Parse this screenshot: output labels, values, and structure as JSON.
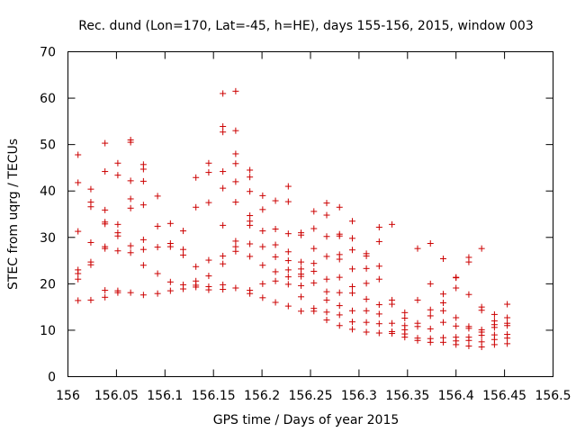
{
  "chart_data": {
    "type": "scatter",
    "title": "Rec. dund (Lon=170, Lat=-45, h=HE), days 155-156, 2015, window 003",
    "xlabel": "GPS time / Days of year 2015",
    "ylabel": "STEC from uqrg / TECUs",
    "xlim": [
      156,
      156.5
    ],
    "ylim": [
      0,
      70
    ],
    "xticks": [
      "156",
      "156.05",
      "156.1",
      "156.15",
      "156.2",
      "156.25",
      "156.3",
      "156.35",
      "156.4",
      "156.45",
      "156.5"
    ],
    "yticks": [
      "0",
      "10",
      "20",
      "30",
      "40",
      "50",
      "60",
      "70"
    ],
    "grid": false,
    "marker": "plus",
    "color": "#cc0000",
    "points": [
      [
        156.0104,
        47.8
      ],
      [
        156.0104,
        41.8
      ],
      [
        156.0104,
        31.3
      ],
      [
        156.0104,
        23.0
      ],
      [
        156.0104,
        22.2
      ],
      [
        156.0104,
        21.0
      ],
      [
        156.0104,
        16.4
      ],
      [
        156.0236,
        40.4
      ],
      [
        156.0236,
        37.6
      ],
      [
        156.0236,
        36.6
      ],
      [
        156.0236,
        28.9
      ],
      [
        156.0236,
        24.7
      ],
      [
        156.0236,
        24.1
      ],
      [
        156.0236,
        16.5
      ],
      [
        156.0382,
        50.3
      ],
      [
        156.0382,
        44.2
      ],
      [
        156.0382,
        35.9
      ],
      [
        156.0382,
        33.3
      ],
      [
        156.0382,
        32.9
      ],
      [
        156.0382,
        28.0
      ],
      [
        156.0382,
        27.6
      ],
      [
        156.0382,
        18.6
      ],
      [
        156.0382,
        17.1
      ],
      [
        156.0514,
        46.0
      ],
      [
        156.0514,
        43.4
      ],
      [
        156.0514,
        32.8
      ],
      [
        156.0514,
        31.0
      ],
      [
        156.0514,
        30.3
      ],
      [
        156.0514,
        27.1
      ],
      [
        156.0514,
        18.5
      ],
      [
        156.0514,
        18.1
      ],
      [
        156.0646,
        51.0
      ],
      [
        156.0646,
        50.5
      ],
      [
        156.0646,
        42.2
      ],
      [
        156.0646,
        38.3
      ],
      [
        156.0646,
        36.3
      ],
      [
        156.0646,
        28.2
      ],
      [
        156.0646,
        26.7
      ],
      [
        156.0646,
        18.1
      ],
      [
        156.0778,
        45.7
      ],
      [
        156.0778,
        44.7
      ],
      [
        156.0778,
        42.1
      ],
      [
        156.0778,
        37.0
      ],
      [
        156.0778,
        29.5
      ],
      [
        156.0778,
        27.4
      ],
      [
        156.0778,
        24.0
      ],
      [
        156.0778,
        17.6
      ],
      [
        156.0924,
        38.9
      ],
      [
        156.0924,
        32.4
      ],
      [
        156.0924,
        27.9
      ],
      [
        156.0924,
        22.2
      ],
      [
        156.0924,
        17.9
      ],
      [
        156.1056,
        33.0
      ],
      [
        156.1056,
        28.7
      ],
      [
        156.1056,
        28.0
      ],
      [
        156.1056,
        20.4
      ],
      [
        156.1056,
        18.5
      ],
      [
        156.1188,
        31.4
      ],
      [
        156.1188,
        27.4
      ],
      [
        156.1188,
        26.2
      ],
      [
        156.1188,
        19.8
      ],
      [
        156.1188,
        18.9
      ],
      [
        156.1319,
        42.9
      ],
      [
        156.1319,
        36.5
      ],
      [
        156.1319,
        23.7
      ],
      [
        156.1319,
        20.6
      ],
      [
        156.1319,
        19.3
      ],
      [
        156.1319,
        19.7
      ],
      [
        156.1451,
        46.0
      ],
      [
        156.1451,
        44.0
      ],
      [
        156.1451,
        37.5
      ],
      [
        156.1451,
        25.1
      ],
      [
        156.1451,
        21.7
      ],
      [
        156.1451,
        19.4
      ],
      [
        156.1451,
        18.7
      ],
      [
        156.1597,
        61.0
      ],
      [
        156.1597,
        53.9
      ],
      [
        156.1597,
        52.7
      ],
      [
        156.1597,
        44.2
      ],
      [
        156.1597,
        40.6
      ],
      [
        156.1597,
        32.6
      ],
      [
        156.1597,
        26.0
      ],
      [
        156.1597,
        24.3
      ],
      [
        156.1597,
        19.8
      ],
      [
        156.1597,
        18.8
      ],
      [
        156.1729,
        61.5
      ],
      [
        156.1729,
        53.0
      ],
      [
        156.1729,
        48.0
      ],
      [
        156.1729,
        45.9
      ],
      [
        156.1729,
        42.0
      ],
      [
        156.1729,
        37.6
      ],
      [
        156.1729,
        29.2
      ],
      [
        156.1729,
        28.0
      ],
      [
        156.1729,
        27.0
      ],
      [
        156.1729,
        19.1
      ],
      [
        156.1875,
        44.5
      ],
      [
        156.1875,
        43.0
      ],
      [
        156.1875,
        39.9
      ],
      [
        156.1875,
        34.7
      ],
      [
        156.1875,
        33.5
      ],
      [
        156.1875,
        32.6
      ],
      [
        156.1875,
        28.6
      ],
      [
        156.1875,
        25.9
      ],
      [
        156.1875,
        18.6
      ],
      [
        156.1875,
        17.9
      ],
      [
        156.2007,
        39.0
      ],
      [
        156.2007,
        36.0
      ],
      [
        156.2007,
        31.4
      ],
      [
        156.2007,
        28.0
      ],
      [
        156.2007,
        24.0
      ],
      [
        156.2007,
        20.0
      ],
      [
        156.2007,
        17.0
      ],
      [
        156.2139,
        37.9
      ],
      [
        156.2139,
        31.8
      ],
      [
        156.2139,
        28.4
      ],
      [
        156.2139,
        25.8
      ],
      [
        156.2139,
        22.6
      ],
      [
        156.2139,
        20.6
      ],
      [
        156.2139,
        16.0
      ],
      [
        156.2271,
        41.0
      ],
      [
        156.2271,
        37.7
      ],
      [
        156.2271,
        30.8
      ],
      [
        156.2271,
        26.9
      ],
      [
        156.2271,
        25.0
      ],
      [
        156.2271,
        23.0
      ],
      [
        156.2271,
        21.5
      ],
      [
        156.2271,
        19.9
      ],
      [
        156.2271,
        15.2
      ],
      [
        156.2403,
        31.0
      ],
      [
        156.2403,
        30.5
      ],
      [
        156.2403,
        24.7
      ],
      [
        156.2403,
        23.2
      ],
      [
        156.2403,
        22.1
      ],
      [
        156.2403,
        21.6
      ],
      [
        156.2403,
        19.6
      ],
      [
        156.2403,
        17.2
      ],
      [
        156.2403,
        14.1
      ],
      [
        156.2535,
        35.6
      ],
      [
        156.2535,
        31.9
      ],
      [
        156.2535,
        27.6
      ],
      [
        156.2535,
        24.4
      ],
      [
        156.2535,
        22.7
      ],
      [
        156.2535,
        20.2
      ],
      [
        156.2535,
        14.7
      ],
      [
        156.2535,
        14.1
      ],
      [
        156.2667,
        37.4
      ],
      [
        156.2667,
        34.8
      ],
      [
        156.2667,
        30.2
      ],
      [
        156.2667,
        25.9
      ],
      [
        156.2667,
        21.0
      ],
      [
        156.2667,
        18.3
      ],
      [
        156.2667,
        16.5
      ],
      [
        156.2667,
        13.9
      ],
      [
        156.2667,
        12.2
      ],
      [
        156.2799,
        36.5
      ],
      [
        156.2799,
        30.7
      ],
      [
        156.2799,
        30.3
      ],
      [
        156.2799,
        26.3
      ],
      [
        156.2799,
        25.3
      ],
      [
        156.2799,
        21.4
      ],
      [
        156.2799,
        18.1
      ],
      [
        156.2799,
        15.3
      ],
      [
        156.2799,
        13.3
      ],
      [
        156.2799,
        11.0
      ],
      [
        156.2931,
        33.5
      ],
      [
        156.2931,
        29.8
      ],
      [
        156.2931,
        27.3
      ],
      [
        156.2931,
        23.2
      ],
      [
        156.2931,
        19.4
      ],
      [
        156.2931,
        18.0
      ],
      [
        156.2931,
        14.2
      ],
      [
        156.2931,
        11.8
      ],
      [
        156.2931,
        10.2
      ],
      [
        156.3076,
        26.5
      ],
      [
        156.3076,
        26.0
      ],
      [
        156.3076,
        23.3
      ],
      [
        156.3076,
        20.1
      ],
      [
        156.3076,
        16.7
      ],
      [
        156.3076,
        14.2
      ],
      [
        156.3076,
        11.7
      ],
      [
        156.3076,
        9.6
      ],
      [
        156.3208,
        32.2
      ],
      [
        156.3208,
        29.1
      ],
      [
        156.3208,
        23.8
      ],
      [
        156.3208,
        21.0
      ],
      [
        156.3208,
        15.5
      ],
      [
        156.3208,
        13.5
      ],
      [
        156.3208,
        11.4
      ],
      [
        156.3208,
        9.4
      ],
      [
        156.334,
        32.8
      ],
      [
        156.334,
        16.5
      ],
      [
        156.334,
        15.6
      ],
      [
        156.334,
        11.5
      ],
      [
        156.334,
        9.7
      ],
      [
        156.334,
        9.3
      ],
      [
        156.3472,
        13.8
      ],
      [
        156.3472,
        12.6
      ],
      [
        156.3472,
        11.0
      ],
      [
        156.3472,
        10.1
      ],
      [
        156.3472,
        9.2
      ],
      [
        156.3472,
        8.5
      ],
      [
        156.3604,
        27.6
      ],
      [
        156.3604,
        16.5
      ],
      [
        156.3604,
        11.5
      ],
      [
        156.3604,
        10.8
      ],
      [
        156.3604,
        8.3
      ],
      [
        156.3604,
        7.8
      ],
      [
        156.3736,
        28.7
      ],
      [
        156.3736,
        20.0
      ],
      [
        156.3736,
        14.4
      ],
      [
        156.3736,
        13.1
      ],
      [
        156.3736,
        10.3
      ],
      [
        156.3736,
        8.2
      ],
      [
        156.3736,
        7.4
      ],
      [
        156.3868,
        25.4
      ],
      [
        156.3868,
        17.8
      ],
      [
        156.3868,
        15.9
      ],
      [
        156.3868,
        14.2
      ],
      [
        156.3868,
        11.7
      ],
      [
        156.3868,
        8.4
      ],
      [
        156.3868,
        7.4
      ],
      [
        156.4,
        21.4
      ],
      [
        156.4,
        21.3
      ],
      [
        156.4,
        19.1
      ],
      [
        156.4,
        12.7
      ],
      [
        156.4,
        10.9
      ],
      [
        156.4,
        8.5
      ],
      [
        156.4,
        7.7
      ],
      [
        156.4,
        6.9
      ],
      [
        156.4132,
        25.7
      ],
      [
        156.4132,
        24.7
      ],
      [
        156.4132,
        17.7
      ],
      [
        156.4132,
        10.8
      ],
      [
        156.4132,
        10.4
      ],
      [
        156.4132,
        8.5
      ],
      [
        156.4132,
        7.8
      ],
      [
        156.4132,
        6.6
      ],
      [
        156.4264,
        27.6
      ],
      [
        156.4264,
        15.0
      ],
      [
        156.4264,
        14.3
      ],
      [
        156.4264,
        10.1
      ],
      [
        156.4264,
        9.6
      ],
      [
        156.4264,
        8.9
      ],
      [
        156.4264,
        7.5
      ],
      [
        156.4264,
        6.4
      ],
      [
        156.4396,
        13.4
      ],
      [
        156.4396,
        12.0
      ],
      [
        156.4396,
        11.2
      ],
      [
        156.4396,
        10.6
      ],
      [
        156.4396,
        9.0
      ],
      [
        156.4396,
        8.0
      ],
      [
        156.4396,
        6.9
      ],
      [
        156.4528,
        15.6
      ],
      [
        156.4528,
        12.7
      ],
      [
        156.4528,
        11.5
      ],
      [
        156.4528,
        11.0
      ],
      [
        156.4528,
        9.1
      ],
      [
        156.4528,
        8.3
      ],
      [
        156.4528,
        7.1
      ]
    ]
  }
}
